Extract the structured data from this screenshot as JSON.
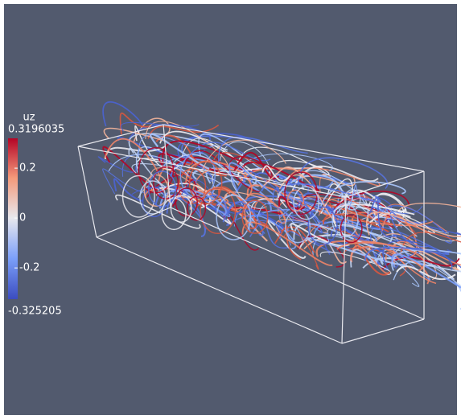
{
  "colorbar": {
    "title": "uz",
    "max": 0.3196035,
    "min": -0.325205,
    "ticks": [
      0.2,
      0,
      -0.2
    ]
  }
}
